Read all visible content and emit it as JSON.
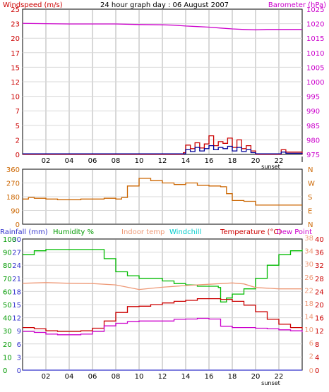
{
  "chart_data": [
    {
      "type": "line",
      "title": "24 hour graph day : 06 August 2007",
      "left_axis_label": "Windspeed (m/s)",
      "right_axis_label": "Barometer (hPa)",
      "x_ticks": [
        "02",
        "04",
        "06",
        "08",
        "10",
        "12",
        "14",
        "16",
        "18",
        "20",
        "22"
      ],
      "sunset_label": "sunset",
      "left_ticks": [
        0,
        2,
        5,
        7,
        10,
        12,
        15,
        17,
        20,
        23,
        25
      ],
      "right_ticks": [
        975,
        980,
        985,
        990,
        995,
        1000,
        1005,
        1010,
        1015,
        1020,
        1025
      ],
      "ylim_left": [
        0,
        25
      ],
      "ylim_right": [
        975,
        1025
      ],
      "series": [
        {
          "name": "Barometer (hPa)",
          "color": "#cc00cc",
          "x": [
            0,
            2,
            4,
            6,
            8,
            10,
            12,
            13,
            14,
            15,
            16,
            17,
            18,
            19,
            20,
            21,
            22,
            24
          ],
          "values": [
            1020.1,
            1020.0,
            1019.9,
            1019.9,
            1019.9,
            1019.7,
            1019.6,
            1019.5,
            1019.2,
            1019.0,
            1018.8,
            1018.5,
            1018.2,
            1018.0,
            1017.9,
            1018.0,
            1018.0,
            1018.0
          ]
        },
        {
          "name": "Windspeed (m/s)",
          "color": "#cc0000",
          "x": [
            0,
            13.8,
            14.0,
            14.4,
            14.8,
            15.2,
            15.6,
            16.0,
            16.4,
            16.8,
            17.2,
            17.6,
            18.0,
            18.4,
            18.8,
            19.2,
            19.6,
            20.0,
            22.0,
            22.2,
            22.6,
            24
          ],
          "values": [
            0,
            0.3,
            1.6,
            1.0,
            2.0,
            1.1,
            1.8,
            3.2,
            1.5,
            2.2,
            1.9,
            2.8,
            1.2,
            2.5,
            1.0,
            1.5,
            0.6,
            0,
            0,
            0.8,
            0.4,
            0
          ]
        },
        {
          "name": "Wind gust",
          "color": "#000099",
          "x": [
            0,
            13.8,
            14.0,
            14.4,
            14.8,
            15.2,
            15.6,
            16.0,
            16.4,
            16.8,
            17.2,
            17.6,
            18.0,
            18.4,
            18.8,
            19.2,
            19.6,
            20.0,
            22.0,
            22.2,
            22.6,
            24
          ],
          "values": [
            0.1,
            0.1,
            0.8,
            0.5,
            1.2,
            0.6,
            1.0,
            1.5,
            0.8,
            1.2,
            1.0,
            1.4,
            0.6,
            1.2,
            0.5,
            0.8,
            0.3,
            0.1,
            0.1,
            0.4,
            0.2,
            0.1
          ]
        }
      ]
    },
    {
      "type": "line",
      "x_ticks": [],
      "left_ticks": [
        0,
        90,
        180,
        270,
        360
      ],
      "right_ticks": [
        "N",
        "E",
        "S",
        "W",
        "N"
      ],
      "ylim_left": [
        0,
        360
      ],
      "series": [
        {
          "name": "Wind direction",
          "color": "#cc6600",
          "x": [
            0,
            0.5,
            1,
            2,
            3,
            4,
            5,
            6,
            7,
            8,
            8.5,
            9,
            10,
            11,
            12,
            13,
            14,
            15,
            16,
            17,
            17.5,
            18,
            19,
            20,
            21,
            22,
            24
          ],
          "values": [
            165,
            175,
            170,
            165,
            160,
            160,
            165,
            165,
            170,
            165,
            175,
            250,
            300,
            285,
            270,
            260,
            270,
            255,
            250,
            245,
            200,
            155,
            150,
            125,
            125,
            125,
            125
          ]
        }
      ]
    },
    {
      "type": "line",
      "x_ticks": [
        "02",
        "04",
        "06",
        "08",
        "10",
        "12",
        "14",
        "16",
        "18",
        "20",
        "22"
      ],
      "sunset_label": "sunset",
      "header_labels": [
        "Rainfall (mm)",
        "Humidity %",
        "Indoor temp",
        "Windchill",
        "Temperature (°C)",
        "Dew Point"
      ],
      "header_colors": [
        "#3333cc",
        "#009900",
        "#ee9977",
        "#00cccc",
        "#cc0000",
        "#cc00cc"
      ],
      "rain_ticks": [
        0,
        3,
        6,
        9,
        12,
        15,
        18,
        21,
        24,
        27,
        30
      ],
      "humidity_ticks": [
        0,
        10,
        20,
        30,
        40,
        50,
        60,
        70,
        80,
        90,
        100
      ],
      "temp_ticks": [
        0,
        4,
        8,
        12,
        16,
        20,
        24,
        28,
        32,
        36,
        40
      ],
      "temp_ticks_alt": [
        0,
        2,
        6,
        10,
        14,
        18,
        22,
        26,
        30,
        34,
        38
      ],
      "ylim_temp": [
        0,
        40
      ],
      "series": [
        {
          "name": "Humidity %",
          "color": "#00bb00",
          "x": [
            0,
            1,
            2,
            3,
            4,
            5,
            6,
            7,
            8,
            9,
            10,
            11,
            12,
            13,
            14,
            15,
            16,
            16.8,
            17,
            17.5,
            18,
            19,
            20,
            21,
            22,
            23,
            24
          ],
          "values": [
            88,
            91,
            92,
            92,
            92,
            92,
            92,
            85,
            75,
            72,
            70,
            70,
            68,
            66,
            65,
            64,
            64,
            63,
            52,
            55,
            58,
            62,
            70,
            80,
            88,
            91,
            92
          ]
        },
        {
          "name": "Indoor temp",
          "color": "#ee9977",
          "x": [
            0,
            2,
            4,
            6,
            8,
            10,
            12,
            14,
            16,
            18,
            19,
            20,
            22,
            24
          ],
          "values": [
            26.5,
            26.7,
            26.5,
            26.4,
            26.0,
            24.6,
            25.3,
            25.8,
            26.2,
            26.6,
            26.3,
            25.2,
            24.8,
            24.8
          ]
        },
        {
          "name": "Temperature (°C)",
          "color": "#cc0000",
          "x": [
            0,
            1,
            2,
            3,
            4,
            5,
            6,
            7,
            8,
            9,
            10,
            11,
            12,
            13,
            14,
            15,
            16,
            17,
            18,
            19,
            20,
            21,
            22,
            23,
            24
          ],
          "values": [
            13.0,
            12.6,
            12.0,
            11.8,
            11.8,
            12.0,
            12.8,
            15.0,
            17.6,
            19.4,
            19.5,
            20.0,
            20.5,
            21.0,
            21.3,
            21.8,
            21.8,
            21.6,
            21.0,
            19.8,
            17.8,
            15.5,
            14.0,
            13.0,
            12.5
          ]
        },
        {
          "name": "Dew Point",
          "color": "#cc00cc",
          "x": [
            0,
            1,
            2,
            3,
            4,
            5,
            6,
            7,
            8,
            9,
            10,
            11,
            12,
            13,
            14,
            15,
            16,
            16.9,
            17,
            18,
            19,
            20,
            21,
            22,
            23,
            24
          ],
          "values": [
            11.8,
            11.5,
            11.0,
            10.8,
            10.8,
            11.0,
            11.8,
            13.5,
            14.3,
            14.8,
            15.0,
            15.0,
            15.0,
            15.5,
            15.6,
            15.8,
            15.6,
            15.6,
            13.4,
            13.0,
            13.0,
            12.8,
            12.6,
            12.3,
            12.0,
            11.6
          ]
        },
        {
          "name": "Rainfall (mm)",
          "color": "#3333cc",
          "x": [
            0,
            24
          ],
          "values": [
            0,
            0
          ]
        }
      ]
    }
  ]
}
